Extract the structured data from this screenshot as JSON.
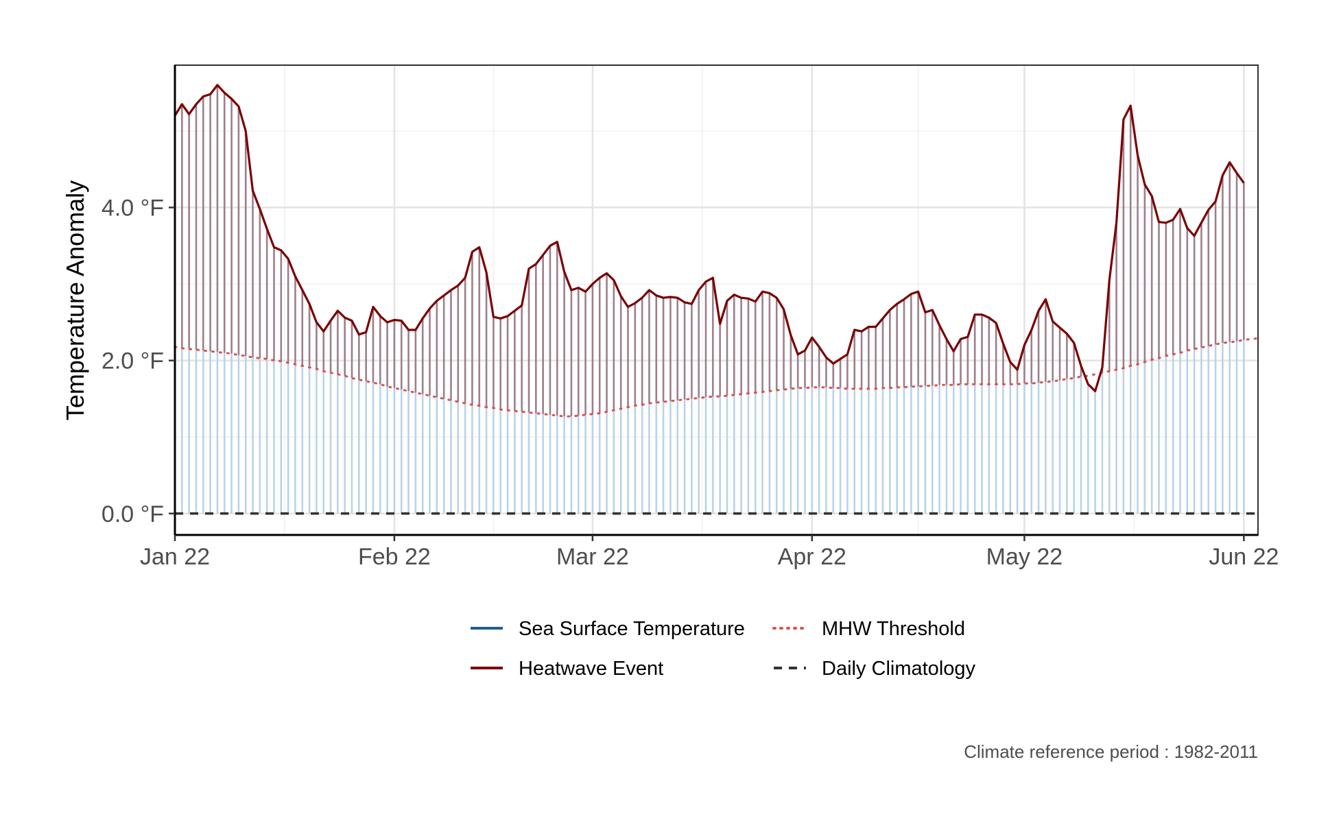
{
  "chart_data": {
    "type": "line",
    "title": "",
    "xlabel": "",
    "ylabel": "Temperature Anomaly",
    "ylim": [
      -0.28,
      5.86
    ],
    "y_ticks": [
      {
        "value": 0,
        "label": "0.0 °F"
      },
      {
        "value": 2,
        "label": "2.0 °F"
      },
      {
        "value": 4,
        "label": "4.0 °F"
      }
    ],
    "x_range_days": [
      0,
      153
    ],
    "x_ticks": [
      {
        "day": 0,
        "label": "Jan 22"
      },
      {
        "day": 31,
        "label": "Feb 22"
      },
      {
        "day": 59,
        "label": "Mar 22"
      },
      {
        "day": 90,
        "label": "Apr 22"
      },
      {
        "day": 120,
        "label": "May 22"
      },
      {
        "day": 151,
        "label": "Jun 22"
      }
    ],
    "day_step": 1,
    "series": [
      {
        "name": "Heatwave Event",
        "color": "#7a0000",
        "values": [
          5.2,
          5.35,
          5.22,
          5.35,
          5.45,
          5.48,
          5.6,
          5.5,
          5.42,
          5.32,
          5.0,
          4.22,
          3.98,
          3.72,
          3.48,
          3.44,
          3.33,
          3.1,
          2.92,
          2.74,
          2.5,
          2.38,
          2.52,
          2.65,
          2.56,
          2.52,
          2.34,
          2.37,
          2.7,
          2.58,
          2.5,
          2.53,
          2.52,
          2.4,
          2.4,
          2.55,
          2.68,
          2.78,
          2.85,
          2.92,
          2.98,
          3.08,
          3.42,
          3.48,
          3.15,
          2.57,
          2.55,
          2.58,
          2.65,
          2.72,
          3.2,
          3.26,
          3.38,
          3.5,
          3.55,
          3.16,
          2.92,
          2.95,
          2.9,
          3.0,
          3.08,
          3.14,
          3.05,
          2.84,
          2.7,
          2.75,
          2.82,
          2.92,
          2.85,
          2.82,
          2.83,
          2.82,
          2.76,
          2.74,
          2.92,
          3.03,
          3.08,
          2.48,
          2.78,
          2.86,
          2.82,
          2.81,
          2.77,
          2.9,
          2.88,
          2.82,
          2.67,
          2.33,
          2.08,
          2.13,
          2.3,
          2.18,
          2.04,
          1.96,
          2.02,
          2.08,
          2.4,
          2.38,
          2.44,
          2.44,
          2.55,
          2.66,
          2.74,
          2.8,
          2.87,
          2.9,
          2.63,
          2.66,
          2.46,
          2.28,
          2.12,
          2.28,
          2.31,
          2.6,
          2.6,
          2.56,
          2.49,
          2.22,
          1.98,
          1.88,
          2.2,
          2.4,
          2.65,
          2.8,
          2.51,
          2.43,
          2.35,
          2.23,
          1.93,
          1.69,
          1.6,
          1.91,
          3.05,
          3.8,
          5.15,
          5.33,
          4.68,
          4.3,
          4.15,
          3.81,
          3.8,
          3.84,
          3.98,
          3.73,
          3.63,
          3.8,
          3.97,
          4.08,
          4.42,
          4.59,
          4.45,
          4.32
        ]
      },
      {
        "name": "MHW Threshold",
        "color": "#d9534f",
        "values": [
          2.18,
          2.16,
          2.15,
          2.14,
          2.13,
          2.12,
          2.11,
          2.1,
          2.09,
          2.07,
          2.06,
          2.04,
          2.03,
          2.02,
          2.0,
          1.99,
          1.97,
          1.95,
          1.93,
          1.91,
          1.89,
          1.86,
          1.84,
          1.82,
          1.8,
          1.77,
          1.75,
          1.73,
          1.71,
          1.69,
          1.66,
          1.64,
          1.62,
          1.6,
          1.58,
          1.56,
          1.54,
          1.52,
          1.5,
          1.48,
          1.46,
          1.44,
          1.42,
          1.41,
          1.39,
          1.38,
          1.36,
          1.35,
          1.34,
          1.33,
          1.32,
          1.31,
          1.3,
          1.29,
          1.28,
          1.27,
          1.27,
          1.28,
          1.29,
          1.3,
          1.31,
          1.33,
          1.35,
          1.37,
          1.39,
          1.41,
          1.42,
          1.44,
          1.45,
          1.46,
          1.47,
          1.48,
          1.49,
          1.5,
          1.51,
          1.52,
          1.53,
          1.53,
          1.54,
          1.55,
          1.56,
          1.57,
          1.58,
          1.59,
          1.6,
          1.61,
          1.62,
          1.63,
          1.64,
          1.64,
          1.65,
          1.65,
          1.65,
          1.64,
          1.64,
          1.63,
          1.63,
          1.63,
          1.63,
          1.63,
          1.64,
          1.64,
          1.65,
          1.65,
          1.66,
          1.66,
          1.67,
          1.67,
          1.68,
          1.68,
          1.68,
          1.69,
          1.69,
          1.69,
          1.69,
          1.69,
          1.69,
          1.69,
          1.69,
          1.69,
          1.7,
          1.7,
          1.71,
          1.72,
          1.73,
          1.74,
          1.76,
          1.77,
          1.79,
          1.8,
          1.82,
          1.84,
          1.86,
          1.88,
          1.9,
          1.93,
          1.95,
          1.98,
          2.01,
          2.03,
          2.06,
          2.08,
          2.1,
          2.13,
          2.15,
          2.17,
          2.19,
          2.21,
          2.23,
          2.24,
          2.25,
          2.27,
          2.28,
          2.29
        ]
      },
      {
        "name": "Daily Climatology",
        "color": "#333333",
        "constant": 0
      },
      {
        "name": "Sea Surface Temperature",
        "color": "#1f5c99"
      }
    ],
    "fill_colors": {
      "above_threshold": "#9c7f8c",
      "below_threshold": "#b9d3e8"
    },
    "legend": {
      "position": "bottom",
      "entries": [
        {
          "label": "Sea Surface Temperature",
          "style": "solid",
          "color": "#1f5c99"
        },
        {
          "label": "MHW Threshold",
          "style": "dotted",
          "color": "#d9534f"
        },
        {
          "label": "Heatwave Event",
          "style": "solid",
          "color": "#7a0000"
        },
        {
          "label": "Daily Climatology",
          "style": "dashed",
          "color": "#333333"
        }
      ]
    },
    "caption": "Climate reference period :  1982-2011",
    "grid": true
  }
}
